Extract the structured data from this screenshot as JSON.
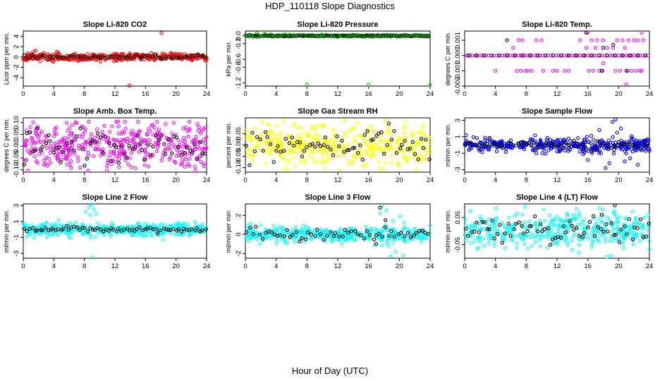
{
  "figure": {
    "title": "HDP_110118  Slope Diagnostics",
    "xlabel": "Hour of Day (UTC)"
  },
  "colors": {
    "red": "#ff0000",
    "green": "#00cc00",
    "magenta": "#ff00ff",
    "yellow": "#ffff00",
    "blue": "#0000ff",
    "cyan": "#00ffff",
    "black": "#000000"
  },
  "chart_data": [
    {
      "type": "scatter",
      "title": "Slope Li-820 CO2",
      "xlabel": "",
      "ylabel": "Licor ppm per min.",
      "xlim": [
        0,
        24
      ],
      "xticks": [
        0,
        4,
        8,
        12,
        16,
        20,
        24
      ],
      "xtick_labels": [
        "0",
        "4",
        "8",
        "12",
        "16",
        "20",
        "24"
      ],
      "ylim": [
        -5.6,
        5.0
      ],
      "yticks": [
        -4,
        -2,
        0,
        2,
        4
      ],
      "ytick_labels": [
        "-4",
        "-2",
        "0",
        "2",
        "4"
      ],
      "series": [
        {
          "color": "#ff0000",
          "dense": true,
          "seed": 11,
          "n": 400,
          "spread": 0.35,
          "x": [
            4.4,
            3.8,
            8.0,
            13.9,
            18.1
          ],
          "y": [
            1.0,
            -0.8,
            -0.5,
            -5.5,
            4.6
          ]
        },
        {
          "color": "#000000",
          "dense": false,
          "seed": 12,
          "n": 70,
          "spread": 0.25,
          "x": [],
          "y": []
        }
      ]
    },
    {
      "type": "scatter",
      "title": "Slope Li-820 Pressure",
      "xlabel": "",
      "ylabel": "kPa per min.",
      "xlim": [
        0,
        24
      ],
      "xticks": [
        0,
        4,
        8,
        12,
        16,
        20,
        24
      ],
      "xtick_labels": [
        "0",
        "4",
        "8",
        "12",
        "16",
        "20",
        "24"
      ],
      "ylim": [
        -1.28,
        0.12
      ],
      "yticks": [
        -1.2,
        -0.8,
        -0.6,
        -0.2,
        0.0
      ],
      "ytick_labels": [
        "-1.2",
        "-0.8",
        "-0.6",
        "-0.2",
        "0.0"
      ],
      "series": [
        {
          "color": "#00cc00",
          "dense": true,
          "seed": 21,
          "n": 380,
          "spread": 0.012,
          "x": [
            8.0,
            16.0,
            24.0,
            1.5,
            2.5
          ],
          "y": [
            -1.24,
            -1.25,
            -1.25,
            0.07,
            0.05
          ]
        },
        {
          "color": "#000000",
          "dense": false,
          "seed": 22,
          "n": 70,
          "spread": 0.008,
          "x": [],
          "y": []
        }
      ]
    },
    {
      "type": "scatter",
      "title": "Slope Li-820 Temp.",
      "xlabel": "",
      "ylabel": "degrees C per min.",
      "xlim": [
        0,
        24
      ],
      "xticks": [
        0,
        4,
        8,
        12,
        16,
        20,
        24
      ],
      "xtick_labels": [
        "0",
        "4",
        "8",
        "12",
        "16",
        "20",
        "24"
      ],
      "ylim": [
        -0.002,
        0.0016
      ],
      "yticks": [
        -0.002,
        -0.001,
        0.0,
        0.001
      ],
      "ytick_labels": [
        "-0.002",
        "-0.001",
        "0.000",
        "0.001"
      ],
      "series": [
        {
          "color": "#ff00ff",
          "dense": false,
          "seed": 31,
          "n": 0,
          "spread": 0,
          "x": [
            0.3,
            0.7,
            1.0,
            1.4,
            1.7,
            2.1,
            2.4,
            2.8,
            3.1,
            3.5,
            3.8,
            4.2,
            4.5,
            4.9,
            5.2,
            5.6,
            5.9,
            6.3,
            6.6,
            7.0,
            7.3,
            7.7,
            8.0,
            8.4,
            8.7,
            9.1,
            9.4,
            9.8,
            10.1,
            10.5,
            10.8,
            11.2,
            11.5,
            11.9,
            12.2,
            12.6,
            12.9,
            13.3,
            13.6,
            14.0,
            14.3,
            14.7,
            15.0,
            15.4,
            15.7,
            16.1,
            16.4,
            16.8,
            17.1,
            17.5,
            17.8,
            18.2,
            18.5,
            18.9,
            19.2,
            19.6,
            19.9,
            20.3,
            20.6,
            21.0,
            21.3,
            21.7,
            22.0,
            22.4,
            22.7,
            23.1,
            23.4,
            23.8,
            4.0,
            6.8,
            7.3,
            7.9,
            8.2,
            8.7,
            10.2,
            11.5,
            12.0,
            13.0,
            13.5,
            16.1,
            16.7,
            17.5,
            17.9,
            19.6,
            20.2,
            21.2,
            21.7,
            22.3,
            22.8,
            23.0,
            7.0,
            7.5,
            9.3,
            10.0,
            15.0,
            16.5,
            17.2,
            18.0,
            19.8,
            20.5,
            21.3,
            22.0,
            22.5,
            23.2,
            20.8,
            6.3,
            17.0,
            18.5,
            19.3,
            15.8,
            16.0,
            18.0,
            23.0,
            21.0
          ],
          "y": [
            0,
            0,
            0,
            0,
            0,
            0,
            0,
            0,
            0,
            0,
            0,
            0,
            0,
            0,
            0,
            0,
            0,
            0,
            0,
            0,
            0,
            0,
            0,
            0,
            0,
            0,
            0,
            0,
            0,
            0,
            0,
            0,
            0,
            0,
            0,
            0,
            0,
            0,
            0,
            0,
            0,
            0,
            0,
            0,
            0,
            0,
            0,
            0,
            0,
            0,
            0,
            0,
            0,
            0,
            0,
            0,
            0,
            0,
            0,
            0,
            0,
            0,
            0,
            0,
            0,
            0,
            0,
            0,
            -0.001,
            -0.001,
            -0.001,
            -0.001,
            -0.001,
            -0.001,
            -0.001,
            -0.001,
            -0.001,
            -0.001,
            -0.001,
            -0.001,
            -0.001,
            -0.001,
            -0.001,
            -0.001,
            -0.001,
            -0.001,
            -0.001,
            -0.001,
            -0.001,
            -0.001,
            0.001,
            0.001,
            0.001,
            0.001,
            0.001,
            0.001,
            0.001,
            0.001,
            0.001,
            0.001,
            0.001,
            0.001,
            0.001,
            0.001,
            0.0005,
            0.0005,
            0.0005,
            0.0005,
            0.0005,
            0.0005,
            0.0015,
            -0.0005,
            0.0015,
            -0.0019
          ]
        },
        {
          "color": "#000000",
          "dense": false,
          "seed": 32,
          "n": 0,
          "spread": 0,
          "x": [
            0.5,
            1.5,
            2.5,
            3.5,
            4.5,
            5.5,
            6.5,
            7.5,
            8.5,
            9.5,
            10.5,
            11.5,
            12.5,
            13.5,
            14.5,
            15.5,
            16.5,
            17.5,
            18.5,
            19.5,
            20.5,
            21.5,
            22.5,
            23.5,
            5.5,
            15.8,
            18.0,
            19.3,
            17.8,
            21.0
          ],
          "y": [
            0,
            0,
            0,
            0,
            0,
            0,
            0,
            0,
            0,
            0,
            0,
            0,
            0,
            0,
            0,
            0,
            0,
            0,
            0,
            0,
            0,
            0,
            0,
            0,
            0.001,
            0.0015,
            0.0005,
            0.0007,
            -0.001,
            -0.001
          ]
        }
      ]
    },
    {
      "type": "scatter",
      "title": "Slope Amb. Box Temp.",
      "xlabel": "",
      "ylabel": "degrees C per min.",
      "xlim": [
        0,
        24
      ],
      "xticks": [
        0,
        4,
        8,
        12,
        16,
        20,
        24
      ],
      "xtick_labels": [
        "0",
        "4",
        "8",
        "12",
        "16",
        "20",
        "24"
      ],
      "ylim": [
        -0.11,
        0.12
      ],
      "yticks": [
        -0.1,
        -0.05,
        0.0,
        0.05,
        0.1
      ],
      "ytick_labels": [
        "-0.10",
        "-0.05",
        "0.00",
        "0.05",
        "0.10"
      ],
      "series": [
        {
          "color": "#ff00ff",
          "dense": true,
          "seed": 41,
          "n": 420,
          "spread": 0.05,
          "x": [],
          "y": []
        },
        {
          "color": "#000000",
          "dense": false,
          "seed": 42,
          "n": 70,
          "spread": 0.04,
          "x": [],
          "y": []
        }
      ]
    },
    {
      "type": "scatter",
      "title": "Slope Gas Stream RH",
      "xlabel": "",
      "ylabel": "percent per min.",
      "xlim": [
        0,
        24
      ],
      "xticks": [
        0,
        4,
        8,
        12,
        16,
        20,
        24
      ],
      "xtick_labels": [
        "0",
        "4",
        "8",
        "12",
        "16",
        "20",
        "24"
      ],
      "ylim": [
        -0.12,
        0.12
      ],
      "yticks": [
        -0.1,
        -0.05,
        0.0,
        0.05
      ],
      "ytick_labels": [
        "-0.10",
        "-0.05",
        "0.00",
        "0.05"
      ],
      "series": [
        {
          "color": "#ffff00",
          "dense": true,
          "seed": 51,
          "n": 420,
          "spread": 0.045,
          "x": [],
          "y": []
        },
        {
          "color": "#000000",
          "dense": false,
          "seed": 52,
          "n": 70,
          "spread": 0.035,
          "x": [],
          "y": []
        }
      ]
    },
    {
      "type": "scatter",
      "title": "Slope Sample Flow",
      "xlabel": "",
      "ylabel": "ml/min per min.",
      "xlim": [
        0,
        24
      ],
      "xticks": [
        0,
        4,
        8,
        12,
        16,
        20,
        24
      ],
      "xtick_labels": [
        "0",
        "4",
        "8",
        "12",
        "16",
        "20",
        "24"
      ],
      "ylim": [
        -3.3,
        3.3
      ],
      "yticks": [
        -3,
        -1,
        1,
        3
      ],
      "ytick_labels": [
        "-3",
        "-1",
        "1",
        "3"
      ],
      "series": [
        {
          "color": "#0000ff",
          "dense": true,
          "seed": 61,
          "n": 380,
          "spread": 0.45,
          "x": [
            18.3,
            19.2,
            19.6,
            20.3,
            20.8,
            21.5,
            17.5,
            18.8,
            19.8,
            22.5
          ],
          "y": [
            -2.8,
            2.8,
            3.1,
            2.0,
            -2.0,
            -1.6,
            1.8,
            -2.2,
            1.5,
            -2.4
          ]
        },
        {
          "color": "#000000",
          "dense": false,
          "seed": 62,
          "n": 70,
          "spread": 0.25,
          "x": [],
          "y": []
        }
      ]
    },
    {
      "type": "scatter",
      "title": "Slope Line 2 Flow",
      "xlabel": "",
      "ylabel": "ml/min per min.",
      "xlim": [
        0,
        24
      ],
      "xticks": [
        0,
        4,
        8,
        12,
        16,
        20,
        24
      ],
      "xtick_labels": [
        "0",
        "4",
        "8",
        "12",
        "16",
        "20",
        "24"
      ],
      "ylim": [
        -3.6,
        3.2
      ],
      "yticks": [
        -3,
        -1,
        1,
        3
      ],
      "ytick_labels": [
        "-3",
        "-1",
        "1",
        "3"
      ],
      "series": [
        {
          "color": "#00ffff",
          "dense": true,
          "seed": 71,
          "n": 400,
          "spread": 0.4,
          "x": [
            8.2,
            8.6,
            9.0,
            9.3,
            8.8,
            9.6,
            9.1
          ],
          "y": [
            2.2,
            2.8,
            3.1,
            2.5,
            1.8,
            2.0,
            -3.5
          ]
        },
        {
          "color": "#000000",
          "dense": false,
          "seed": 72,
          "n": 70,
          "spread": 0.15,
          "x": [],
          "y": []
        }
      ]
    },
    {
      "type": "scatter",
      "title": "Slope Line 3 Flow",
      "xlabel": "",
      "ylabel": "ml/min per min.",
      "xlim": [
        0,
        24
      ],
      "xticks": [
        0,
        4,
        8,
        12,
        16,
        20,
        24
      ],
      "xtick_labels": [
        "0",
        "4",
        "8",
        "12",
        "16",
        "20",
        "24"
      ],
      "ylim": [
        -2.5,
        3.2
      ],
      "yticks": [
        -2,
        0,
        2
      ],
      "ytick_labels": [
        "-2",
        "0",
        "2"
      ],
      "series": [
        {
          "color": "#00ffff",
          "dense": true,
          "seed": 81,
          "n": 400,
          "spread": 0.4,
          "x": [
            17.8,
            18.3,
            18.9,
            19.5,
            20.1,
            17.5,
            18.6,
            19.2,
            20.5,
            16.8
          ],
          "y": [
            3.0,
            2.5,
            -2.3,
            -1.8,
            1.9,
            2.2,
            -1.2,
            1.4,
            -2.2,
            -1.1
          ]
        },
        {
          "color": "#000000",
          "dense": false,
          "seed": 82,
          "n": 60,
          "spread": 0.3,
          "x": [
            17.5,
            18.2,
            17.0
          ],
          "y": [
            2.8,
            1.5,
            -1.0
          ]
        }
      ]
    },
    {
      "type": "scatter",
      "title": "Slope Line 4 (LT) Flow",
      "xlabel": "",
      "ylabel": "ml/min per min.",
      "xlim": [
        0,
        24
      ],
      "xticks": [
        0,
        4,
        8,
        12,
        16,
        20,
        24
      ],
      "xtick_labels": [
        "0",
        "4",
        "8",
        "12",
        "16",
        "20",
        "24"
      ],
      "ylim": [
        -0.1,
        0.1
      ],
      "yticks": [
        -0.05,
        0.05
      ],
      "ytick_labels": [
        "-0.05",
        "0.05"
      ],
      "series": [
        {
          "color": "#00ffff",
          "dense": true,
          "seed": 91,
          "n": 400,
          "spread": 0.032,
          "x": [
            17.5,
            18.0,
            19.0,
            18.5
          ],
          "y": [
            0.085,
            0.08,
            -0.09,
            -0.095
          ]
        },
        {
          "color": "#000000",
          "dense": false,
          "seed": 92,
          "n": 70,
          "spread": 0.025,
          "x": [
            19.5,
            17.8
          ],
          "y": [
            0.095,
            0.06
          ]
        }
      ]
    }
  ]
}
